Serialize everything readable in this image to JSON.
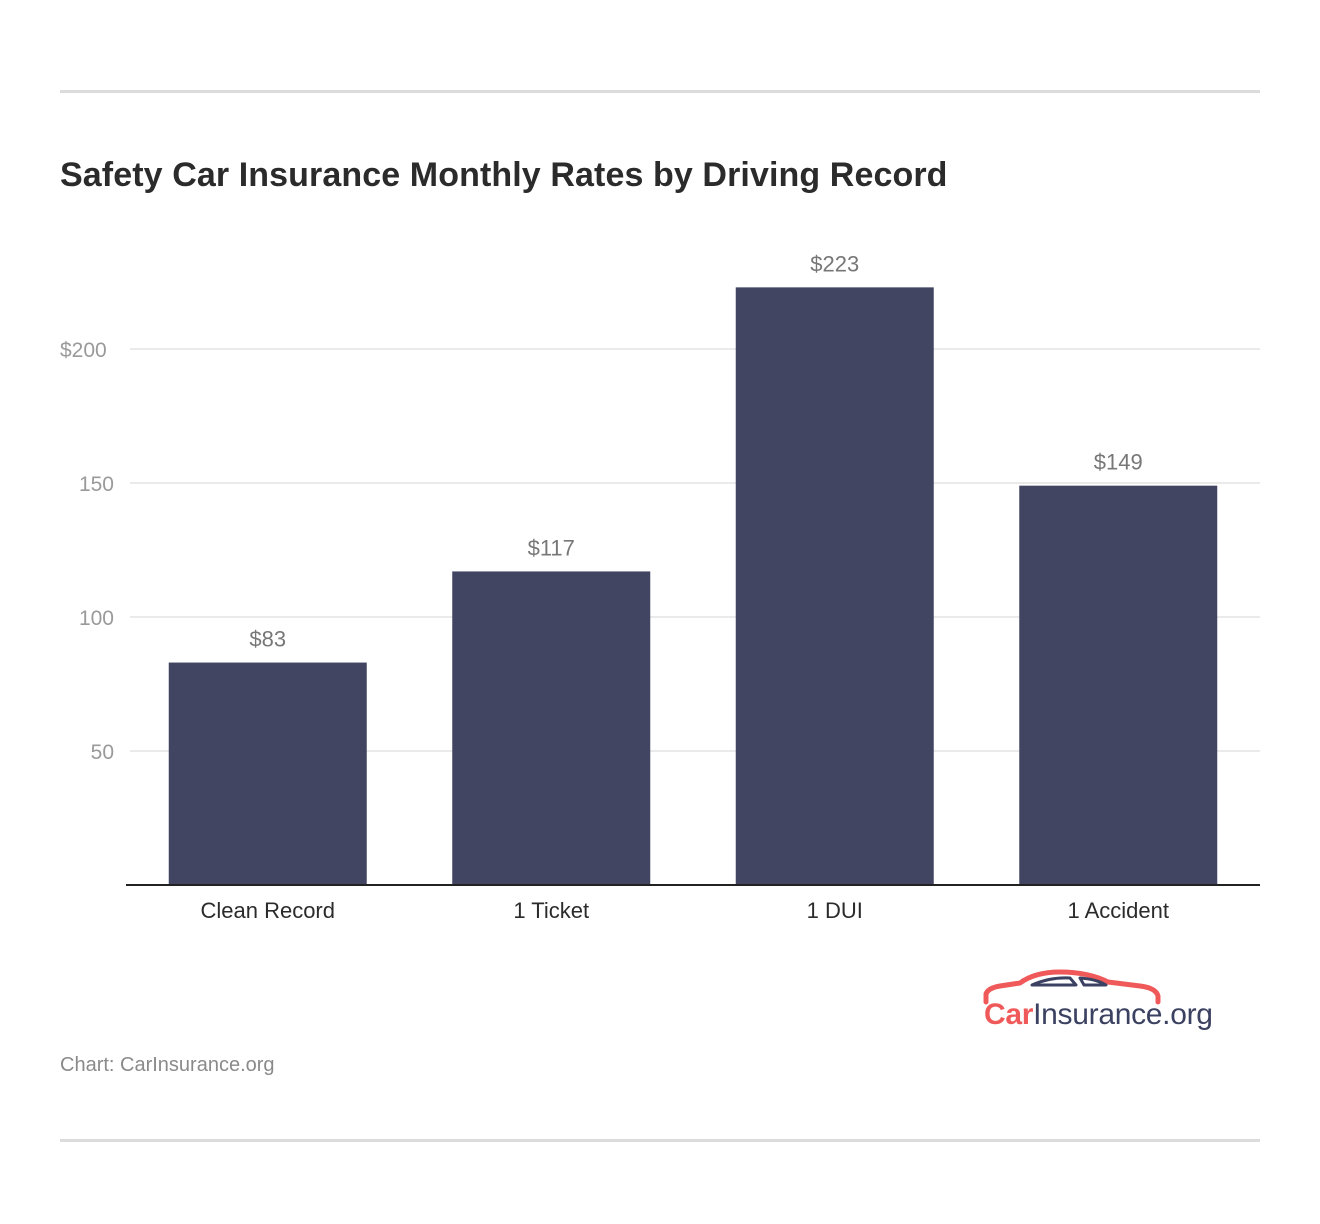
{
  "title": "Safety Car Insurance Monthly Rates by Driving Record",
  "source": "Chart: CarInsurance.org",
  "logo": {
    "part1": "Car",
    "part2": "Insurance.org",
    "car_color": "#f0595a",
    "text_color": "#3b4160"
  },
  "colors": {
    "bar": "#414562",
    "grid": "#e3e3e3",
    "axis": "#222222",
    "tick_label": "#9a9a9a",
    "value_label": "#777777",
    "category_label": "#2b2b2b",
    "rule": "#dcdcdc"
  },
  "chart_data": {
    "type": "bar",
    "categories": [
      "Clean Record",
      "1 Ticket",
      "1 DUI",
      "1 Accident"
    ],
    "values": [
      83,
      117,
      223,
      149
    ],
    "value_labels": [
      "$83",
      "$117",
      "$223",
      "$149"
    ],
    "yticks": [
      50,
      100,
      150,
      200
    ],
    "ytick_labels": [
      "50",
      "100",
      "150",
      "200"
    ],
    "ytick_prefix_first_top": "$200",
    "ylim": [
      0,
      223
    ],
    "grid": true,
    "xlabel": "",
    "ylabel": ""
  }
}
